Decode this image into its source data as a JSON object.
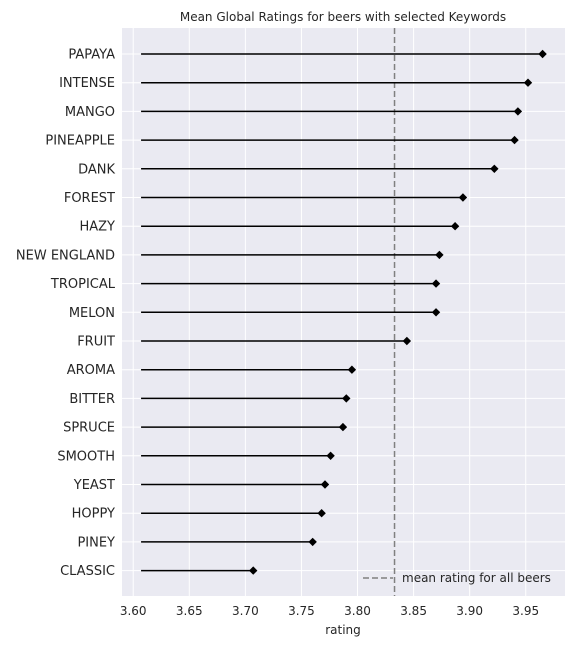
{
  "chart_data": {
    "type": "lollipop",
    "title": "Mean Global Ratings for beers with selected Keywords",
    "xlabel": "rating",
    "ylabel": "",
    "xlim": [
      3.59,
      3.985
    ],
    "xticks": [
      "3.60",
      "3.65",
      "3.70",
      "3.75",
      "3.80",
      "3.85",
      "3.90",
      "3.95"
    ],
    "baseline": 3.607,
    "categories": [
      "PAPAYA",
      "INTENSE",
      "MANGO",
      "PINEAPPLE",
      "DANK",
      "FOREST",
      "HAZY",
      "NEW ENGLAND",
      "TROPICAL",
      "MELON",
      "FRUIT",
      "AROMA",
      "BITTER",
      "SPRUCE",
      "SMOOTH",
      "YEAST",
      "HOPPY",
      "PINEY",
      "CLASSIC"
    ],
    "values": [
      3.965,
      3.952,
      3.943,
      3.94,
      3.922,
      3.894,
      3.887,
      3.873,
      3.87,
      3.87,
      3.844,
      3.795,
      3.79,
      3.787,
      3.776,
      3.771,
      3.768,
      3.76,
      3.707
    ],
    "reference_line": {
      "value": 3.833,
      "label": "mean rating for all beers",
      "style": "dashed",
      "color": "#808080"
    },
    "legend_position": "lower-right",
    "grid": true,
    "colors": {
      "background": "#eaeaf2",
      "grid": "#ffffff",
      "stem": "#000000",
      "marker": "#000000"
    }
  }
}
